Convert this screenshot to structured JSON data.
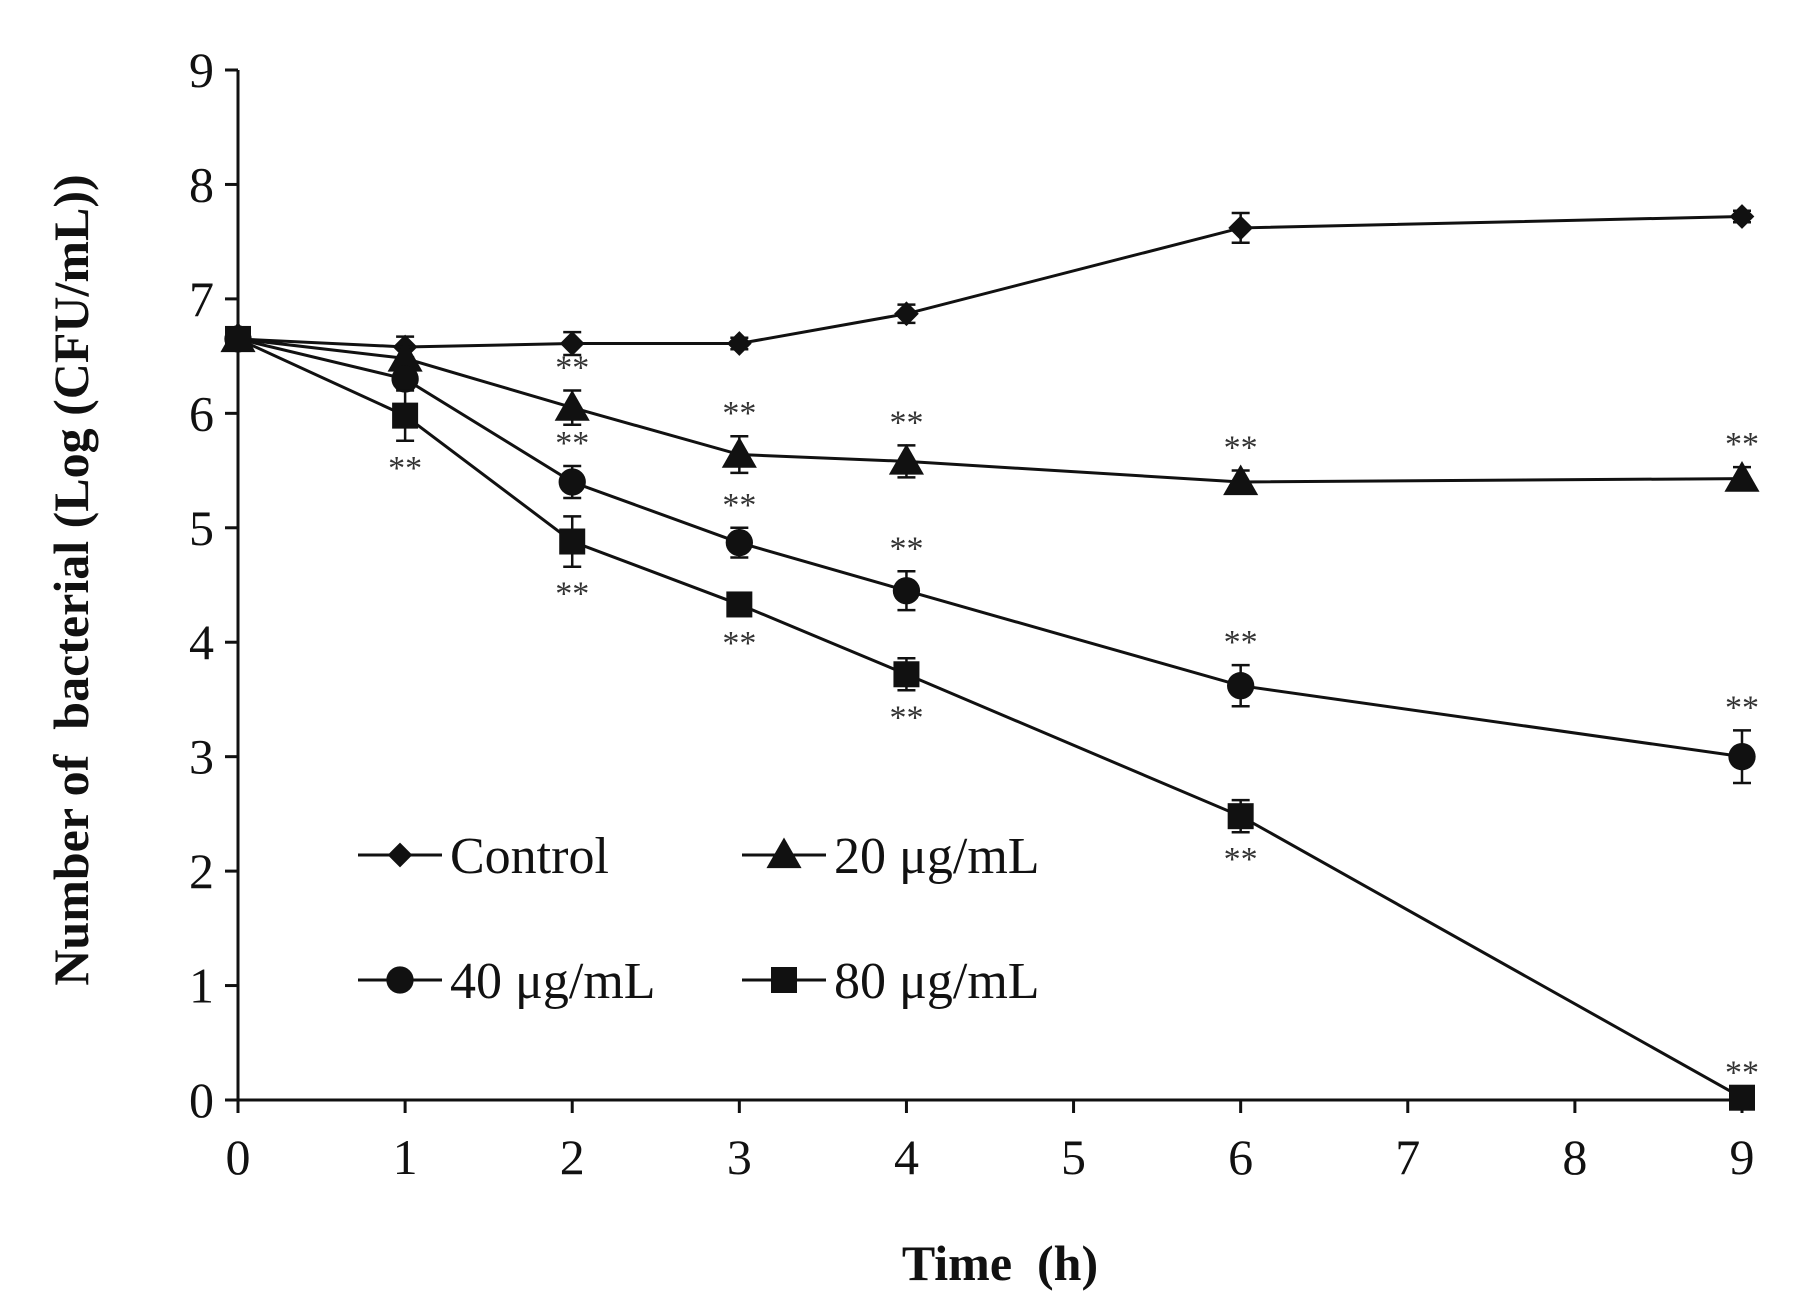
{
  "chart_data": {
    "type": "line",
    "title": "",
    "xlabel": "Time  (h)",
    "ylabel": "Number of  bacterial (Log (CFU/mL))",
    "xlim": [
      0,
      9
    ],
    "ylim": [
      0,
      9
    ],
    "xticks": [
      "0",
      "1",
      "2",
      "3",
      "4",
      "5",
      "6",
      "7",
      "8",
      "9"
    ],
    "yticks": [
      "0",
      "1",
      "2",
      "3",
      "4",
      "5",
      "6",
      "7",
      "8",
      "9"
    ],
    "grid": false,
    "legend_position": "bottom-left",
    "significance_marker": "**",
    "series": [
      {
        "name": "Control",
        "marker": "diamond",
        "x": [
          0,
          1,
          2,
          3,
          4,
          6,
          9
        ],
        "values": [
          6.65,
          6.58,
          6.61,
          6.61,
          6.87,
          7.62,
          7.72
        ],
        "error": [
          0.05,
          0.09,
          0.1,
          0.05,
          0.08,
          0.13,
          0.05
        ],
        "significant": [
          false,
          false,
          false,
          false,
          false,
          false,
          false
        ]
      },
      {
        "name": "20 μg/mL",
        "marker": "triangle",
        "x": [
          0,
          1,
          2,
          3,
          4,
          6,
          9
        ],
        "values": [
          6.65,
          6.48,
          6.05,
          5.64,
          5.58,
          5.4,
          5.43
        ],
        "error": [
          0.05,
          0.1,
          0.15,
          0.16,
          0.14,
          0.1,
          0.1
        ],
        "significant": [
          false,
          false,
          true,
          true,
          true,
          true,
          true
        ]
      },
      {
        "name": "40 μg/mL",
        "marker": "circle",
        "x": [
          0,
          1,
          2,
          3,
          4,
          6,
          9
        ],
        "values": [
          6.65,
          6.3,
          5.4,
          4.87,
          4.45,
          3.62,
          3.0
        ],
        "error": [
          0.05,
          0.08,
          0.14,
          0.13,
          0.17,
          0.18,
          0.23
        ],
        "significant": [
          false,
          false,
          true,
          true,
          true,
          true,
          true
        ]
      },
      {
        "name": "80 μg/mL",
        "marker": "square",
        "x": [
          0,
          1,
          2,
          3,
          4,
          6,
          9
        ],
        "values": [
          6.65,
          5.98,
          4.88,
          4.33,
          3.72,
          2.48,
          0.02
        ],
        "error": [
          0.05,
          0.22,
          0.22,
          0.1,
          0.14,
          0.14,
          0.02
        ],
        "significant": [
          false,
          true,
          true,
          true,
          true,
          true,
          true
        ]
      }
    ]
  }
}
